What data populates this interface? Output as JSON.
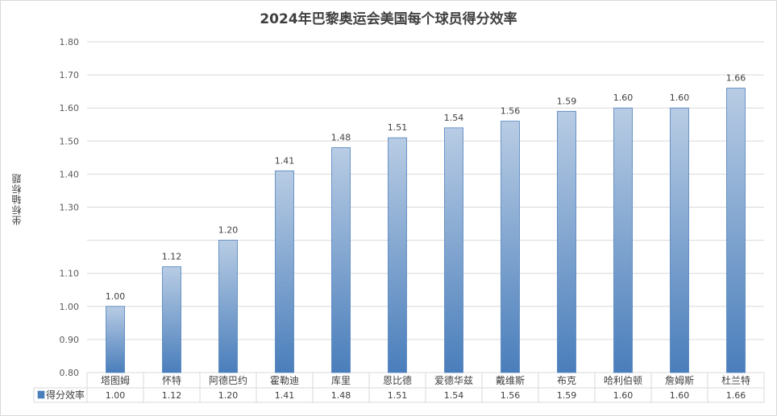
{
  "chart_data": {
    "type": "bar",
    "title": "2024年巴黎奥运会美国每个球员得分效率",
    "xlabel": "",
    "ylabel": "坐标轴标题",
    "ylim": [
      0.8,
      1.8
    ],
    "yticks": [
      "0.80",
      "0.90",
      "1.00",
      "1.10",
      "",
      "1.30",
      "1.40",
      "1.50",
      "1.60",
      "1.70",
      "1.80"
    ],
    "categories": [
      "塔图姆",
      "怀特",
      "阿德巴约",
      "霍勒迪",
      "库里",
      "恩比德",
      "爱德华兹",
      "戴维斯",
      "布克",
      "哈利伯顿",
      "詹姆斯",
      "杜兰特"
    ],
    "series": [
      {
        "name": "得分效率",
        "values": [
          1.0,
          1.12,
          1.2,
          1.41,
          1.48,
          1.51,
          1.54,
          1.56,
          1.59,
          1.6,
          1.6,
          1.66
        ],
        "labels": [
          "1.00",
          "1.12",
          "1.20",
          "1.41",
          "1.48",
          "1.51",
          "1.54",
          "1.56",
          "1.59",
          "1.60",
          "1.60",
          "1.66"
        ]
      }
    ],
    "grid": true,
    "legend": "data-table",
    "colors": {
      "bar_top": "#b8cce4",
      "bar_bottom": "#4a7ebb",
      "bar_edge": "#4f81bd",
      "grid": "#d9d9d9"
    }
  }
}
